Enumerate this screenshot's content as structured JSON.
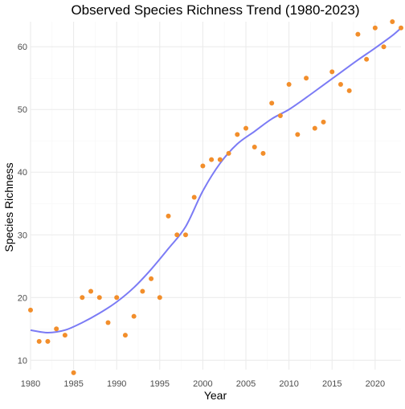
{
  "chart_data": {
    "type": "scatter",
    "title": "Observed Species Richness Trend (1980-2023)",
    "xlabel": "Year",
    "ylabel": "Species Richness",
    "xlim": [
      1980,
      2023
    ],
    "ylim": [
      8.5,
      64
    ],
    "grid": true,
    "legend": "none",
    "x_ticks": [
      1980,
      1985,
      1990,
      1995,
      2000,
      2005,
      2010,
      2015,
      2020
    ],
    "y_ticks": [
      10,
      20,
      30,
      40,
      50,
      60
    ],
    "x_tick_labels": [
      "1980",
      "1985",
      "1990",
      "1995",
      "2000",
      "2005",
      "2010",
      "2015",
      "2020"
    ],
    "y_tick_labels": [
      "10",
      "20",
      "30",
      "40",
      "50",
      "60"
    ],
    "points": {
      "color": "#f28e2b",
      "x": [
        1980,
        1981,
        1982,
        1983,
        1984,
        1985,
        1986,
        1987,
        1988,
        1989,
        1990,
        1991,
        1992,
        1993,
        1994,
        1995,
        1996,
        1997,
        1998,
        1999,
        2000,
        2001,
        2002,
        2003,
        2004,
        2005,
        2006,
        2007,
        2008,
        2009,
        2010,
        2011,
        2012,
        2013,
        2014,
        2015,
        2016,
        2017,
        2018,
        2019,
        2020,
        2021,
        2022,
        2023
      ],
      "y": [
        18,
        13,
        13,
        15,
        14,
        8,
        20,
        21,
        20,
        16,
        20,
        14,
        17,
        21,
        23,
        20,
        33,
        30,
        30,
        36,
        41,
        42,
        42,
        43,
        46,
        47,
        44,
        43,
        51,
        49,
        54,
        46,
        55,
        47,
        48,
        56,
        54,
        53,
        62,
        58,
        63,
        60,
        64,
        63
      ]
    },
    "trend": {
      "color": "#7b7bf5",
      "x": [
        1980,
        1982,
        1984,
        1986,
        1988,
        1990,
        1992,
        1994,
        1996,
        1998,
        2000,
        2002,
        2004,
        2006,
        2008,
        2010,
        2012,
        2014,
        2016,
        2018,
        2020,
        2022,
        2023
      ],
      "y": [
        14.8,
        14.4,
        14.8,
        16.0,
        17.5,
        19.3,
        21.6,
        24.5,
        27.8,
        31.3,
        37.0,
        41.4,
        44.5,
        46.5,
        48.5,
        50.0,
        51.9,
        53.9,
        55.9,
        57.9,
        59.8,
        61.8,
        63.0
      ]
    }
  }
}
